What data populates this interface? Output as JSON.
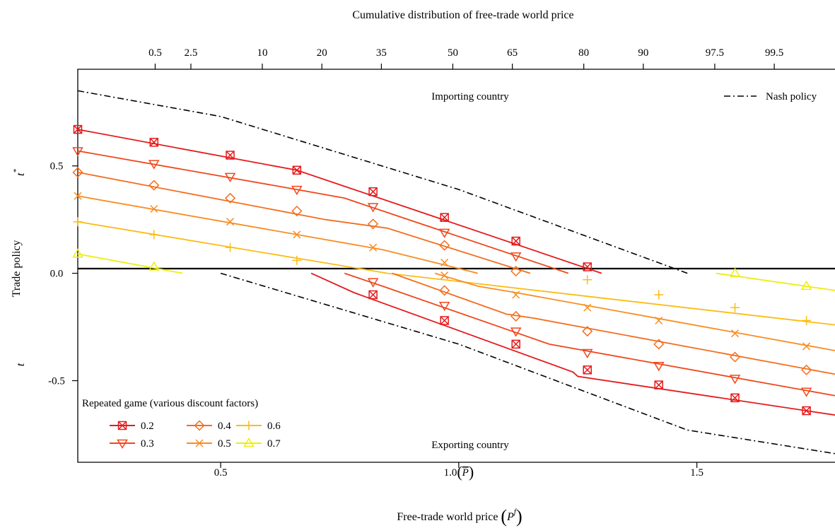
{
  "chart_data": {
    "type": "line",
    "title": "",
    "top_axis": {
      "label": "Cumulative distribution of free-trade world price",
      "ticks": [
        {
          "x": 0.3625,
          "label": "0.5"
        },
        {
          "x": 0.4375,
          "label": "2.5"
        },
        {
          "x": 0.5875,
          "label": "10"
        },
        {
          "x": 0.7125,
          "label": "20"
        },
        {
          "x": 0.8375,
          "label": "35"
        },
        {
          "x": 0.9875,
          "label": "50"
        },
        {
          "x": 1.1125,
          "label": "65"
        },
        {
          "x": 1.2625,
          "label": "80"
        },
        {
          "x": 1.3875,
          "label": "90"
        },
        {
          "x": 1.5375,
          "label": "97.5"
        },
        {
          "x": 1.6625,
          "label": "99.5"
        }
      ]
    },
    "xlabel": "Free-trade world price",
    "xlabel_symbol": "P",
    "xlabel_superscript": "f",
    "xlim": [
      0.2,
      1.79
    ],
    "x_ticks": [
      {
        "x": 0.5,
        "label": "0.5",
        "suffix": ""
      },
      {
        "x": 1.0,
        "label": "1.0",
        "suffix": "P"
      },
      {
        "x": 1.5,
        "label": "1.5",
        "suffix": ""
      }
    ],
    "ylabel": "Trade policy",
    "ylabel_upper": "t",
    "ylabel_upper_superscript": "*",
    "ylabel_lower": "t",
    "ylim": [
      -0.88,
      0.95
    ],
    "y_ticks": [
      {
        "y": 0.5,
        "label": "0.5"
      },
      {
        "y": 0.0,
        "label": "0.0"
      },
      {
        "y": -0.5,
        "label": "-0.5"
      }
    ],
    "grid": false,
    "annotations": {
      "top": "Importing country",
      "bottom": "Exporting country"
    },
    "nash": {
      "name": "Nash policy",
      "color": "#000000",
      "upper": [
        [
          0.2,
          0.85
        ],
        [
          0.5,
          0.73
        ],
        [
          1.0,
          0.39
        ],
        [
          1.48,
          0.0
        ]
      ],
      "lower": [
        [
          0.5,
          0.0
        ],
        [
          1.0,
          -0.33
        ],
        [
          1.48,
          -0.73
        ],
        [
          1.79,
          -0.84
        ]
      ]
    },
    "legend": {
      "title": "Repeated game (various discount factors)",
      "placement": "bottom-left"
    },
    "series": [
      {
        "name": "0.2",
        "color": "#e41a1c",
        "marker": "boxx",
        "upper": [
          [
            0.2,
            0.67
          ],
          [
            0.66,
            0.48
          ],
          [
            0.78,
            0.39
          ],
          [
            1.3,
            0.0
          ]
        ],
        "lower": [
          [
            0.69,
            0.0
          ],
          [
            0.78,
            -0.09
          ],
          [
            1.24,
            -0.46
          ],
          [
            1.25,
            -0.48
          ],
          [
            1.79,
            -0.66
          ]
        ],
        "marker_pts": [
          [
            0.2,
            0.67
          ],
          [
            0.36,
            0.61
          ],
          [
            0.52,
            0.55
          ],
          [
            0.66,
            0.48
          ],
          [
            0.82,
            0.38
          ],
          [
            0.97,
            0.26
          ],
          [
            1.12,
            0.15
          ],
          [
            1.27,
            0.03
          ],
          [
            0.82,
            -0.1
          ],
          [
            0.97,
            -0.22
          ],
          [
            1.12,
            -0.33
          ],
          [
            1.27,
            -0.45
          ],
          [
            1.42,
            -0.52
          ],
          [
            1.58,
            -0.58
          ],
          [
            1.73,
            -0.64
          ]
        ]
      },
      {
        "name": "0.3",
        "color": "#f0471b",
        "marker": "tri-down",
        "upper": [
          [
            0.2,
            0.57
          ],
          [
            0.66,
            0.39
          ],
          [
            0.76,
            0.35
          ],
          [
            1.23,
            0.0
          ]
        ],
        "lower": [
          [
            0.76,
            0.0
          ],
          [
            0.84,
            -0.06
          ],
          [
            1.19,
            -0.33
          ],
          [
            1.79,
            -0.57
          ]
        ],
        "marker_pts": [
          [
            0.2,
            0.57
          ],
          [
            0.36,
            0.51
          ],
          [
            0.52,
            0.45
          ],
          [
            0.66,
            0.39
          ],
          [
            0.82,
            0.31
          ],
          [
            0.97,
            0.19
          ],
          [
            1.12,
            0.08
          ],
          [
            0.82,
            -0.04
          ],
          [
            0.97,
            -0.15
          ],
          [
            1.12,
            -0.27
          ],
          [
            1.27,
            -0.37
          ],
          [
            1.42,
            -0.43
          ],
          [
            1.58,
            -0.49
          ],
          [
            1.73,
            -0.55
          ]
        ]
      },
      {
        "name": "0.4",
        "color": "#f46d1e",
        "marker": "diamond",
        "upper": [
          [
            0.2,
            0.47
          ],
          [
            0.72,
            0.25
          ],
          [
            0.85,
            0.21
          ],
          [
            1.15,
            0.0
          ]
        ],
        "lower": [
          [
            0.86,
            0.0
          ],
          [
            1.1,
            -0.19
          ],
          [
            1.16,
            -0.21
          ],
          [
            1.79,
            -0.47
          ]
        ],
        "marker_pts": [
          [
            0.2,
            0.47
          ],
          [
            0.36,
            0.41
          ],
          [
            0.52,
            0.35
          ],
          [
            0.66,
            0.29
          ],
          [
            0.82,
            0.23
          ],
          [
            0.97,
            0.13
          ],
          [
            1.12,
            0.01
          ],
          [
            0.97,
            -0.08
          ],
          [
            1.12,
            -0.2
          ],
          [
            1.27,
            -0.27
          ],
          [
            1.42,
            -0.33
          ],
          [
            1.58,
            -0.39
          ],
          [
            1.73,
            -0.45
          ]
        ]
      },
      {
        "name": "0.5",
        "color": "#f98d21",
        "marker": "x",
        "upper": [
          [
            0.2,
            0.36
          ],
          [
            0.84,
            0.11
          ],
          [
            1.04,
            0.0
          ]
        ],
        "lower": [
          [
            0.95,
            0.0
          ],
          [
            1.04,
            -0.06
          ],
          [
            1.12,
            -0.09
          ],
          [
            1.79,
            -0.36
          ]
        ],
        "marker_pts": [
          [
            0.2,
            0.36
          ],
          [
            0.36,
            0.3
          ],
          [
            0.52,
            0.24
          ],
          [
            0.66,
            0.18
          ],
          [
            0.82,
            0.12
          ],
          [
            0.97,
            0.05
          ],
          [
            0.97,
            -0.01
          ],
          [
            1.12,
            -0.1
          ],
          [
            1.27,
            -0.16
          ],
          [
            1.42,
            -0.22
          ],
          [
            1.58,
            -0.28
          ],
          [
            1.73,
            -0.34
          ]
        ]
      },
      {
        "name": "0.6",
        "color": "#fcbc14",
        "marker": "plus",
        "upper": [
          [
            0.2,
            0.24
          ],
          [
            0.85,
            0.0
          ]
        ],
        "lower": [
          [
            0.85,
            0.0
          ],
          [
            1.79,
            -0.24
          ]
        ],
        "marker_pts": [
          [
            0.2,
            0.24
          ],
          [
            0.36,
            0.18
          ],
          [
            0.52,
            0.12
          ],
          [
            0.66,
            0.06
          ],
          [
            1.27,
            -0.03
          ],
          [
            1.42,
            -0.1
          ],
          [
            1.58,
            -0.16
          ],
          [
            1.73,
            -0.22
          ]
        ]
      },
      {
        "name": "0.7",
        "color": "#eded12",
        "marker": "tri-up",
        "upper": [
          [
            0.2,
            0.09
          ],
          [
            0.42,
            0.0
          ]
        ],
        "lower": [
          [
            1.54,
            0.0
          ],
          [
            1.79,
            -0.08
          ]
        ],
        "marker_pts": [
          [
            0.2,
            0.09
          ],
          [
            0.36,
            0.03
          ],
          [
            1.58,
            0.0
          ],
          [
            1.73,
            -0.06
          ]
        ]
      }
    ]
  }
}
